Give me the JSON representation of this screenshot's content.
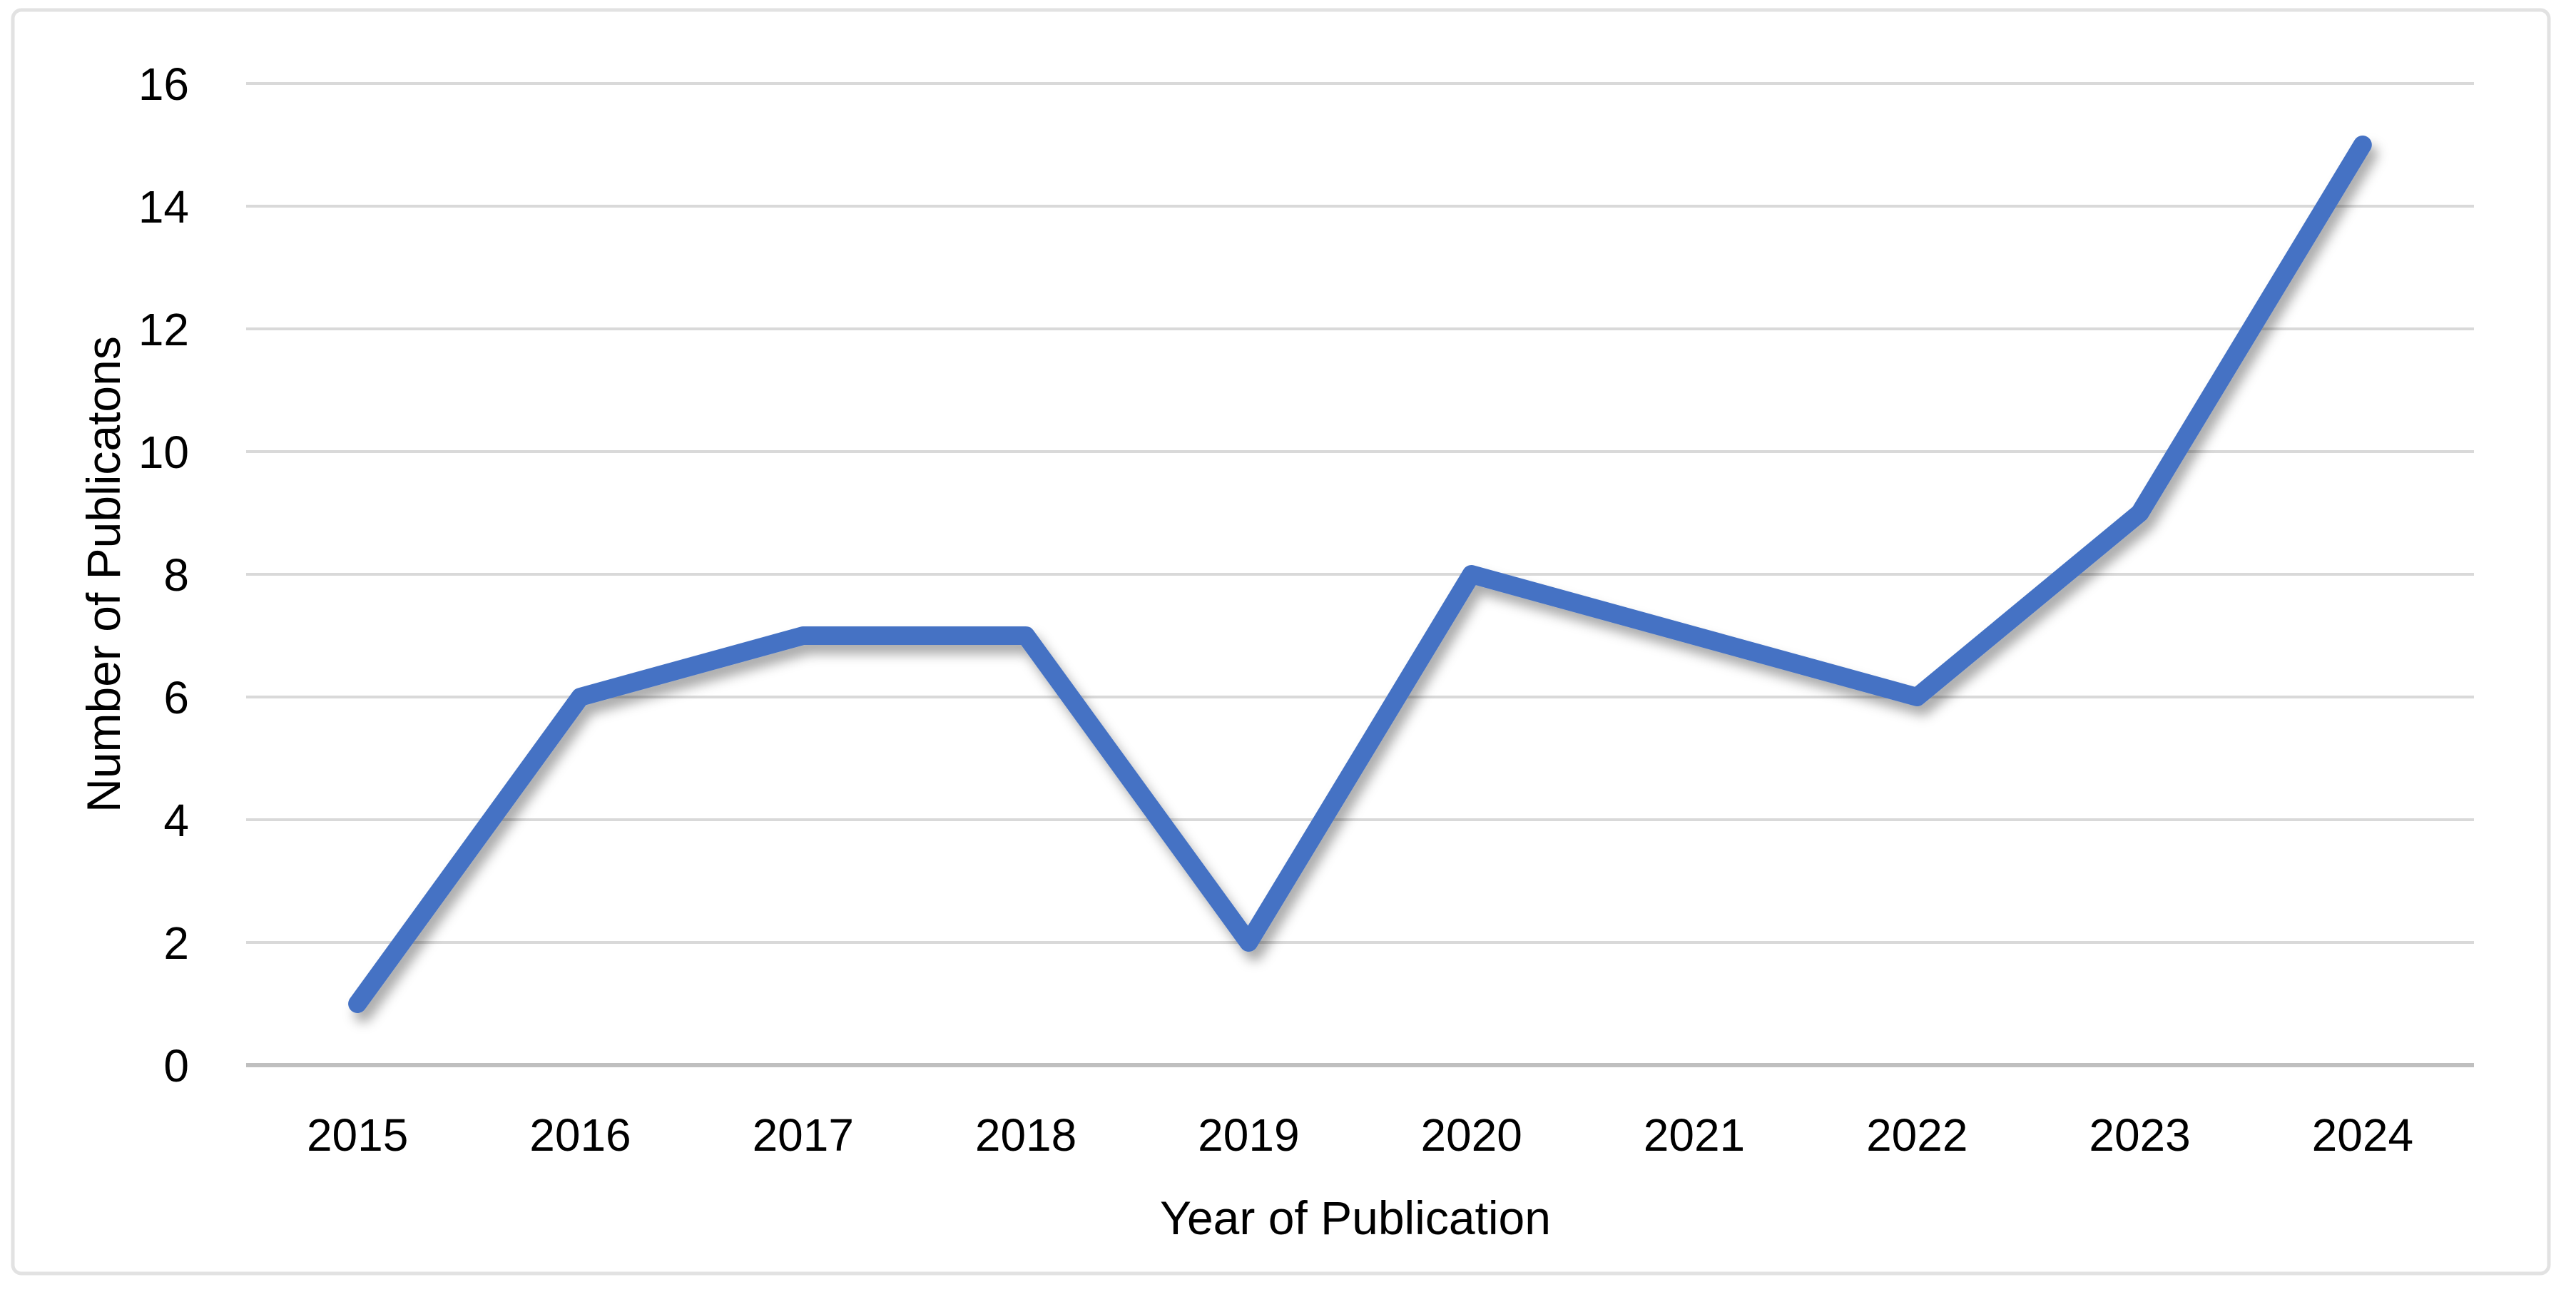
{
  "chart_data": {
    "type": "line",
    "title": "",
    "categories": [
      "2015",
      "2016",
      "2017",
      "2018",
      "2019",
      "2020",
      "2021",
      "2022",
      "2023",
      "2024"
    ],
    "series": [
      {
        "name": "Number of Publicatons",
        "values": [
          1,
          6,
          7,
          7,
          2,
          8,
          7,
          6,
          9,
          15
        ]
      }
    ],
    "xlabel": "Year of Publication",
    "ylabel": "Number of Publicatons",
    "ylim": [
      0,
      16
    ],
    "yticks": [
      0,
      2,
      4,
      6,
      8,
      10,
      12,
      14,
      16
    ],
    "grid": true,
    "legend": false,
    "colors": {
      "line": "#4472C4",
      "gridline": "#D9D9D9",
      "axis_line": "#BFBFBF",
      "text": "#000000",
      "frame_border": "#E2E2E2",
      "background": "#FFFFFF"
    }
  }
}
